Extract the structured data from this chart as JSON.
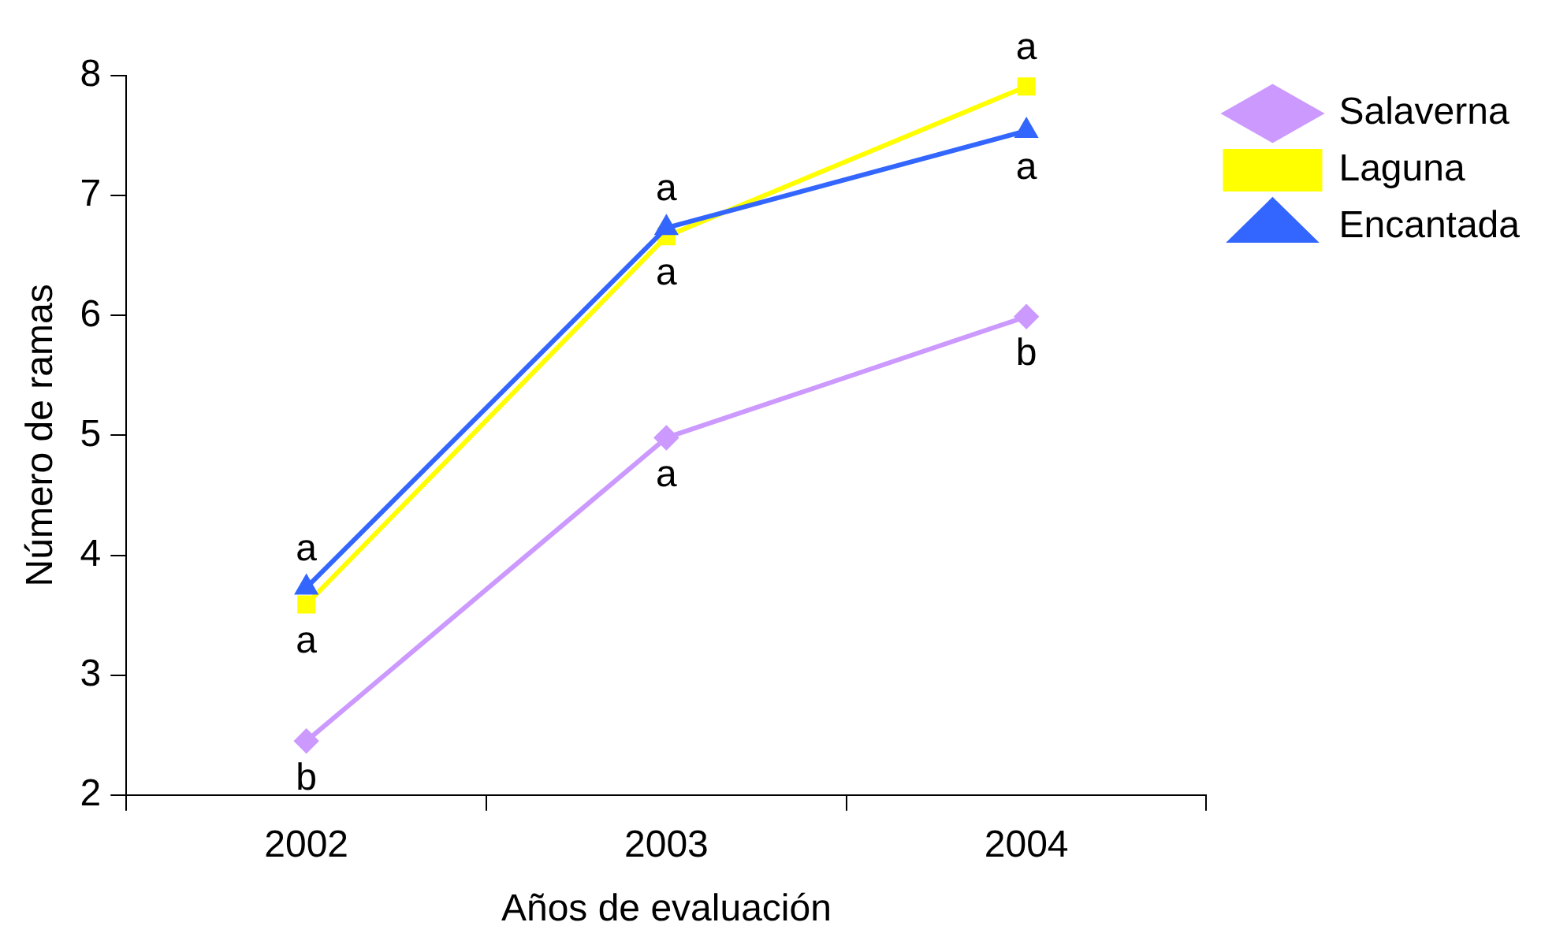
{
  "chart_data": {
    "type": "line",
    "xlabel": "Años de evaluación",
    "ylabel": "Número de ramas",
    "categories": [
      "2002",
      "2003",
      "2004"
    ],
    "series": [
      {
        "name": "Salaverna",
        "color": "#cc99ff",
        "values": [
          2.45,
          4.98,
          5.99
        ],
        "marker": "diamond"
      },
      {
        "name": "Laguna",
        "color": "#ffff00",
        "values": [
          3.59,
          6.66,
          7.91
        ],
        "marker": "square"
      },
      {
        "name": "Encantada",
        "color": "#3366ff",
        "values": [
          3.73,
          6.73,
          7.54
        ],
        "marker": "triangle"
      }
    ],
    "ylim": [
      2,
      8
    ],
    "yticks": [
      2,
      3,
      4,
      5,
      6,
      7,
      8
    ],
    "grid": false,
    "legend": "top right",
    "line_style": "solid",
    "annotations": [
      {
        "text": "a",
        "x": "2002",
        "y": 3.73
      },
      {
        "text": "a",
        "x": "2002",
        "y": 3.59
      },
      {
        "text": "b",
        "x": "2002",
        "y": 2.45
      },
      {
        "text": "a",
        "x": "2003",
        "y": 6.73
      },
      {
        "text": "a",
        "x": "2003",
        "y": 6.66
      },
      {
        "text": "a",
        "x": "2003",
        "y": 4.98
      },
      {
        "text": "a",
        "x": "2004",
        "y": 7.91
      },
      {
        "text": "a",
        "x": "2004",
        "y": 7.54
      },
      {
        "text": "b",
        "x": "2004",
        "y": 5.99
      }
    ]
  }
}
